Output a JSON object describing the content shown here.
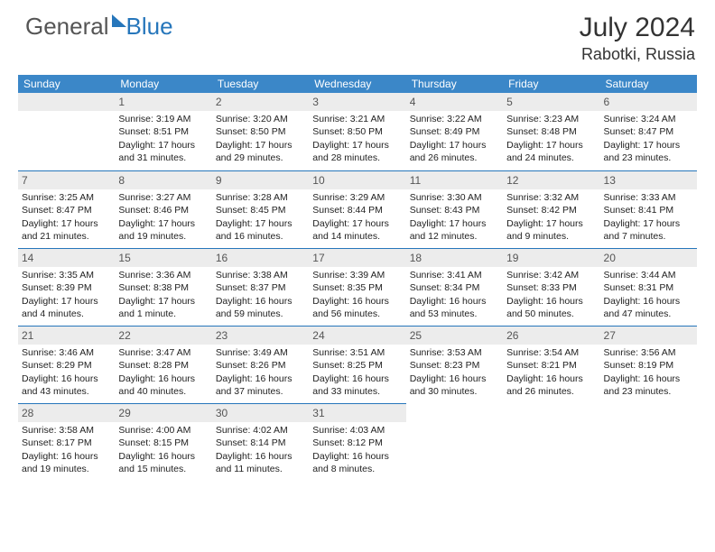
{
  "logo": {
    "part1": "General",
    "part2": "Blue"
  },
  "header": {
    "month_title": "July 2024",
    "location": "Rabotki, Russia"
  },
  "colors": {
    "header_bg": "#3b87c8",
    "accent": "#2676bb",
    "daynum_bg": "#ececec",
    "text": "#222222"
  },
  "daynames": [
    "Sunday",
    "Monday",
    "Tuesday",
    "Wednesday",
    "Thursday",
    "Friday",
    "Saturday"
  ],
  "weeks": [
    [
      {
        "blank": true
      },
      {
        "n": "1",
        "sr": "Sunrise: 3:19 AM",
        "ss": "Sunset: 8:51 PM",
        "d1": "Daylight: 17 hours",
        "d2": "and 31 minutes."
      },
      {
        "n": "2",
        "sr": "Sunrise: 3:20 AM",
        "ss": "Sunset: 8:50 PM",
        "d1": "Daylight: 17 hours",
        "d2": "and 29 minutes."
      },
      {
        "n": "3",
        "sr": "Sunrise: 3:21 AM",
        "ss": "Sunset: 8:50 PM",
        "d1": "Daylight: 17 hours",
        "d2": "and 28 minutes."
      },
      {
        "n": "4",
        "sr": "Sunrise: 3:22 AM",
        "ss": "Sunset: 8:49 PM",
        "d1": "Daylight: 17 hours",
        "d2": "and 26 minutes."
      },
      {
        "n": "5",
        "sr": "Sunrise: 3:23 AM",
        "ss": "Sunset: 8:48 PM",
        "d1": "Daylight: 17 hours",
        "d2": "and 24 minutes."
      },
      {
        "n": "6",
        "sr": "Sunrise: 3:24 AM",
        "ss": "Sunset: 8:47 PM",
        "d1": "Daylight: 17 hours",
        "d2": "and 23 minutes."
      }
    ],
    [
      {
        "n": "7",
        "sr": "Sunrise: 3:25 AM",
        "ss": "Sunset: 8:47 PM",
        "d1": "Daylight: 17 hours",
        "d2": "and 21 minutes."
      },
      {
        "n": "8",
        "sr": "Sunrise: 3:27 AM",
        "ss": "Sunset: 8:46 PM",
        "d1": "Daylight: 17 hours",
        "d2": "and 19 minutes."
      },
      {
        "n": "9",
        "sr": "Sunrise: 3:28 AM",
        "ss": "Sunset: 8:45 PM",
        "d1": "Daylight: 17 hours",
        "d2": "and 16 minutes."
      },
      {
        "n": "10",
        "sr": "Sunrise: 3:29 AM",
        "ss": "Sunset: 8:44 PM",
        "d1": "Daylight: 17 hours",
        "d2": "and 14 minutes."
      },
      {
        "n": "11",
        "sr": "Sunrise: 3:30 AM",
        "ss": "Sunset: 8:43 PM",
        "d1": "Daylight: 17 hours",
        "d2": "and 12 minutes."
      },
      {
        "n": "12",
        "sr": "Sunrise: 3:32 AM",
        "ss": "Sunset: 8:42 PM",
        "d1": "Daylight: 17 hours",
        "d2": "and 9 minutes."
      },
      {
        "n": "13",
        "sr": "Sunrise: 3:33 AM",
        "ss": "Sunset: 8:41 PM",
        "d1": "Daylight: 17 hours",
        "d2": "and 7 minutes."
      }
    ],
    [
      {
        "n": "14",
        "sr": "Sunrise: 3:35 AM",
        "ss": "Sunset: 8:39 PM",
        "d1": "Daylight: 17 hours",
        "d2": "and 4 minutes."
      },
      {
        "n": "15",
        "sr": "Sunrise: 3:36 AM",
        "ss": "Sunset: 8:38 PM",
        "d1": "Daylight: 17 hours",
        "d2": "and 1 minute."
      },
      {
        "n": "16",
        "sr": "Sunrise: 3:38 AM",
        "ss": "Sunset: 8:37 PM",
        "d1": "Daylight: 16 hours",
        "d2": "and 59 minutes."
      },
      {
        "n": "17",
        "sr": "Sunrise: 3:39 AM",
        "ss": "Sunset: 8:35 PM",
        "d1": "Daylight: 16 hours",
        "d2": "and 56 minutes."
      },
      {
        "n": "18",
        "sr": "Sunrise: 3:41 AM",
        "ss": "Sunset: 8:34 PM",
        "d1": "Daylight: 16 hours",
        "d2": "and 53 minutes."
      },
      {
        "n": "19",
        "sr": "Sunrise: 3:42 AM",
        "ss": "Sunset: 8:33 PM",
        "d1": "Daylight: 16 hours",
        "d2": "and 50 minutes."
      },
      {
        "n": "20",
        "sr": "Sunrise: 3:44 AM",
        "ss": "Sunset: 8:31 PM",
        "d1": "Daylight: 16 hours",
        "d2": "and 47 minutes."
      }
    ],
    [
      {
        "n": "21",
        "sr": "Sunrise: 3:46 AM",
        "ss": "Sunset: 8:29 PM",
        "d1": "Daylight: 16 hours",
        "d2": "and 43 minutes."
      },
      {
        "n": "22",
        "sr": "Sunrise: 3:47 AM",
        "ss": "Sunset: 8:28 PM",
        "d1": "Daylight: 16 hours",
        "d2": "and 40 minutes."
      },
      {
        "n": "23",
        "sr": "Sunrise: 3:49 AM",
        "ss": "Sunset: 8:26 PM",
        "d1": "Daylight: 16 hours",
        "d2": "and 37 minutes."
      },
      {
        "n": "24",
        "sr": "Sunrise: 3:51 AM",
        "ss": "Sunset: 8:25 PM",
        "d1": "Daylight: 16 hours",
        "d2": "and 33 minutes."
      },
      {
        "n": "25",
        "sr": "Sunrise: 3:53 AM",
        "ss": "Sunset: 8:23 PM",
        "d1": "Daylight: 16 hours",
        "d2": "and 30 minutes."
      },
      {
        "n": "26",
        "sr": "Sunrise: 3:54 AM",
        "ss": "Sunset: 8:21 PM",
        "d1": "Daylight: 16 hours",
        "d2": "and 26 minutes."
      },
      {
        "n": "27",
        "sr": "Sunrise: 3:56 AM",
        "ss": "Sunset: 8:19 PM",
        "d1": "Daylight: 16 hours",
        "d2": "and 23 minutes."
      }
    ],
    [
      {
        "n": "28",
        "sr": "Sunrise: 3:58 AM",
        "ss": "Sunset: 8:17 PM",
        "d1": "Daylight: 16 hours",
        "d2": "and 19 minutes."
      },
      {
        "n": "29",
        "sr": "Sunrise: 4:00 AM",
        "ss": "Sunset: 8:15 PM",
        "d1": "Daylight: 16 hours",
        "d2": "and 15 minutes."
      },
      {
        "n": "30",
        "sr": "Sunrise: 4:02 AM",
        "ss": "Sunset: 8:14 PM",
        "d1": "Daylight: 16 hours",
        "d2": "and 11 minutes."
      },
      {
        "n": "31",
        "sr": "Sunrise: 4:03 AM",
        "ss": "Sunset: 8:12 PM",
        "d1": "Daylight: 16 hours",
        "d2": "and 8 minutes."
      },
      {
        "blank": true
      },
      {
        "blank": true
      },
      {
        "blank": true
      }
    ]
  ]
}
